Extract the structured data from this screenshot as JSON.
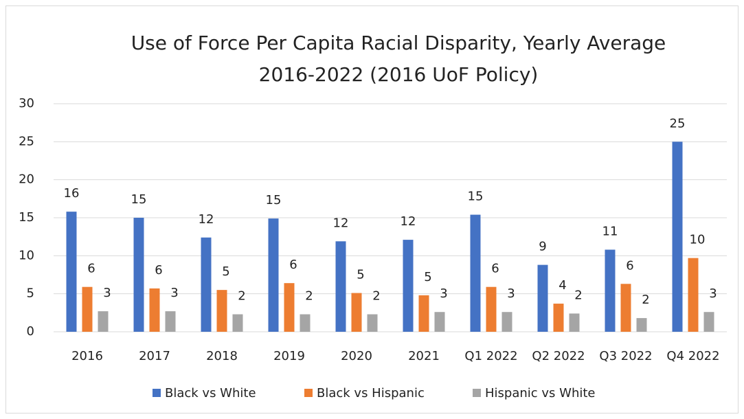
{
  "chart_data": {
    "type": "bar",
    "title": "Use of Force Per Capita Racial Disparity, Yearly Average\n2016-2022 (2016 UoF Policy)",
    "categories": [
      "2016",
      "2017",
      "2018",
      "2019",
      "2020",
      "2021",
      "Q1 2022",
      "Q2 2022",
      "Q3 2022",
      "Q4 2022"
    ],
    "series": [
      {
        "name": "Black vs White",
        "color": "#4472c4",
        "values": [
          15.8,
          15.0,
          12.4,
          14.9,
          11.9,
          12.1,
          15.4,
          8.8,
          10.8,
          25.0
        ],
        "value_labels": [
          "16",
          "15",
          "12",
          "15",
          "12",
          "12",
          "15",
          "9",
          "11",
          "25"
        ]
      },
      {
        "name": "Black vs Hispanic",
        "color": "#ed7d31",
        "values": [
          5.9,
          5.7,
          5.5,
          6.4,
          5.1,
          4.8,
          5.9,
          3.7,
          6.3,
          9.7
        ],
        "value_labels": [
          "6",
          "6",
          "5",
          "6",
          "5",
          "5",
          "6",
          "4",
          "6",
          "10"
        ]
      },
      {
        "name": "Hispanic vs White",
        "color": "#a5a5a5",
        "values": [
          2.7,
          2.7,
          2.3,
          2.3,
          2.3,
          2.6,
          2.6,
          2.4,
          1.8,
          2.6
        ],
        "value_labels": [
          "3",
          "3",
          "2",
          "2",
          "2",
          "3",
          "3",
          "2",
          "2",
          "3"
        ]
      }
    ],
    "ylim": [
      0,
      30
    ],
    "yticks": [
      0,
      5,
      10,
      15,
      20,
      25,
      30
    ],
    "grid": true,
    "legend": "bottom"
  }
}
